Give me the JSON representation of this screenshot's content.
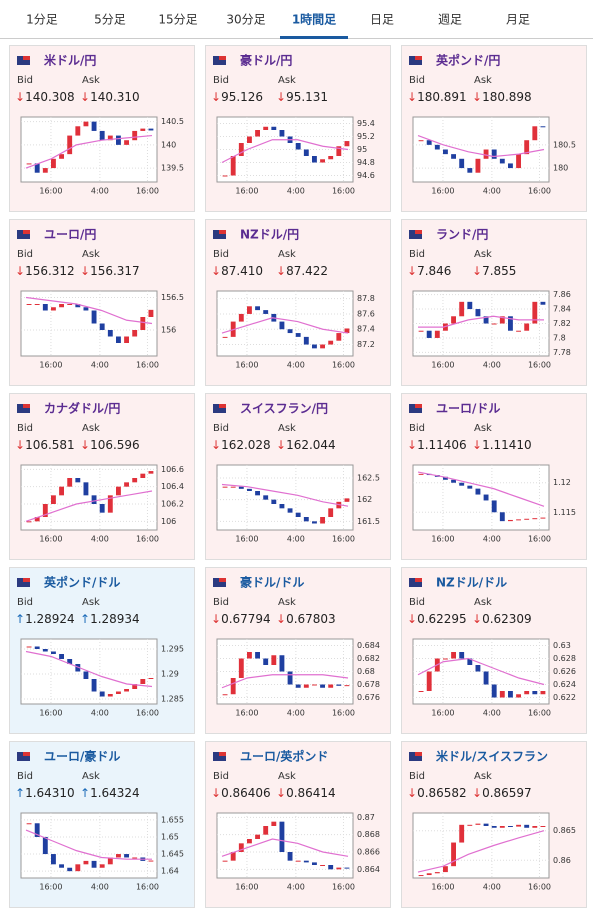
{
  "tabs": {
    "items": [
      "1分足",
      "5分足",
      "15分足",
      "30分足",
      "1時間足",
      "日足",
      "週足",
      "月足"
    ],
    "active": 4
  },
  "cards": [
    {
      "title": "米ドル/円",
      "bid_label": "Bid",
      "ask_label": "Ask",
      "bid": "140.308",
      "ask": "140.310",
      "dir": "down",
      "ylim": [
        139.2,
        140.6
      ],
      "yticks": [
        140.5,
        140,
        139.5
      ],
      "xticks": [
        "16:00",
        "4:00",
        "16:00"
      ],
      "closes": [
        139.6,
        139.4,
        139.5,
        139.7,
        139.8,
        140.2,
        140.4,
        140.5,
        140.3,
        140.1,
        140.2,
        140.0,
        140.1,
        140.3,
        140.35,
        140.31
      ],
      "ma": [
        139.5,
        139.7,
        140.0,
        140.1,
        140.15,
        140.2
      ]
    },
    {
      "title": "豪ドル/円",
      "bid_label": "Bid",
      "ask_label": "Ask",
      "bid": "95.126",
      "ask": "95.131",
      "dir": "down",
      "ylim": [
        94.5,
        95.5
      ],
      "yticks": [
        95.4,
        95.2,
        95,
        94.8,
        94.6
      ],
      "xticks": [
        "16:00",
        "4:00",
        "16:00"
      ],
      "closes": [
        94.6,
        94.9,
        95.1,
        95.2,
        95.3,
        95.35,
        95.3,
        95.2,
        95.1,
        95.0,
        94.9,
        94.8,
        94.85,
        94.9,
        95.05,
        95.13
      ],
      "ma": [
        94.8,
        95.0,
        95.15,
        95.15,
        95.05,
        95.0
      ]
    },
    {
      "title": "英ポンド/円",
      "bid_label": "Bid",
      "ask_label": "Ask",
      "bid": "180.891",
      "ask": "180.898",
      "dir": "down",
      "ylim": [
        179.7,
        181.1
      ],
      "yticks": [
        180.5,
        180
      ],
      "xticks": [
        "16:00",
        "4:00",
        "16:00"
      ],
      "closes": [
        180.6,
        180.5,
        180.4,
        180.3,
        180.2,
        180.0,
        179.9,
        180.2,
        180.4,
        180.2,
        180.1,
        180.0,
        180.3,
        180.6,
        180.9,
        180.89
      ],
      "ma": [
        180.7,
        180.5,
        180.35,
        180.25,
        180.3,
        180.4
      ]
    },
    {
      "title": "ユーロ/円",
      "bid_label": "Bid",
      "ask_label": "Ask",
      "bid": "156.312",
      "ask": "156.317",
      "dir": "down",
      "ylim": [
        155.6,
        156.6
      ],
      "yticks": [
        156.5,
        156
      ],
      "xticks": [
        "16:00",
        "4:00",
        "16:00"
      ],
      "closes": [
        156.4,
        156.4,
        156.3,
        156.35,
        156.4,
        156.4,
        156.35,
        156.3,
        156.1,
        156.0,
        155.9,
        155.8,
        155.9,
        156.0,
        156.2,
        156.31
      ],
      "ma": [
        156.5,
        156.45,
        156.4,
        156.3,
        156.15,
        156.1
      ]
    },
    {
      "title": "NZドル/円",
      "bid_label": "Bid",
      "ask_label": "Ask",
      "bid": "87.410",
      "ask": "87.422",
      "dir": "down",
      "ylim": [
        87.05,
        87.9
      ],
      "yticks": [
        87.8,
        87.6,
        87.4,
        87.2
      ],
      "xticks": [
        "16:00",
        "4:00",
        "16:00"
      ],
      "closes": [
        87.3,
        87.5,
        87.6,
        87.7,
        87.65,
        87.6,
        87.5,
        87.4,
        87.35,
        87.3,
        87.2,
        87.15,
        87.2,
        87.25,
        87.35,
        87.41
      ],
      "ma": [
        87.35,
        87.45,
        87.55,
        87.5,
        87.4,
        87.35
      ]
    },
    {
      "title": "ランド/円",
      "bid_label": "Bid",
      "ask_label": "Ask",
      "bid": "7.846",
      "ask": "7.855",
      "dir": "down",
      "ylim": [
        7.775,
        7.865
      ],
      "yticks": [
        7.86,
        7.84,
        7.82,
        7.8,
        7.78
      ],
      "xticks": [
        "16:00",
        "4:00",
        "16:00"
      ],
      "closes": [
        7.81,
        7.8,
        7.81,
        7.82,
        7.83,
        7.85,
        7.84,
        7.83,
        7.82,
        7.82,
        7.83,
        7.81,
        7.81,
        7.82,
        7.85,
        7.846
      ],
      "ma": [
        7.815,
        7.815,
        7.825,
        7.83,
        7.825,
        7.825
      ]
    },
    {
      "title": "カナダドル/円",
      "bid_label": "Bid",
      "ask_label": "Ask",
      "bid": "106.581",
      "ask": "106.596",
      "dir": "down",
      "ylim": [
        105.9,
        106.65
      ],
      "yticks": [
        106.6,
        106.4,
        106.2,
        106
      ],
      "xticks": [
        "16:00",
        "4:00",
        "16:00"
      ],
      "closes": [
        106.0,
        106.05,
        106.2,
        106.3,
        106.4,
        106.5,
        106.45,
        106.3,
        106.2,
        106.1,
        106.3,
        106.4,
        106.45,
        106.5,
        106.55,
        106.58
      ],
      "ma": [
        106.0,
        106.1,
        106.2,
        106.25,
        106.3,
        106.35
      ]
    },
    {
      "title": "スイスフラン/円",
      "bid_label": "Bid",
      "ask_label": "Ask",
      "bid": "162.028",
      "ask": "162.044",
      "dir": "down",
      "ylim": [
        161.3,
        162.8
      ],
      "yticks": [
        162.5,
        162,
        161.5
      ],
      "xticks": [
        "16:00",
        "4:00",
        "16:00"
      ],
      "closes": [
        162.3,
        162.3,
        162.25,
        162.2,
        162.1,
        162.0,
        161.9,
        161.8,
        161.7,
        161.6,
        161.5,
        161.45,
        161.6,
        161.8,
        161.95,
        162.03
      ],
      "ma": [
        162.35,
        162.3,
        162.2,
        162.1,
        161.95,
        161.85
      ]
    },
    {
      "title": "ユーロ/ドル",
      "bid_label": "Bid",
      "ask_label": "Ask",
      "bid": "1.11406",
      "ask": "1.11410",
      "dir": "down",
      "ylim": [
        1.112,
        1.123
      ],
      "yticks": [
        1.12,
        1.115
      ],
      "xticks": [
        "16:00",
        "4:00",
        "16:00"
      ],
      "closes": [
        1.1215,
        1.1213,
        1.121,
        1.1205,
        1.12,
        1.1195,
        1.119,
        1.118,
        1.117,
        1.115,
        1.1135,
        1.1137,
        1.1138,
        1.1139,
        1.114,
        1.1141
      ],
      "ma": [
        1.1218,
        1.121,
        1.12,
        1.119,
        1.1175,
        1.116
      ]
    },
    {
      "title": "英ポンド/ドル",
      "bid_label": "Bid",
      "ask_label": "Ask",
      "bid": "1.28924",
      "ask": "1.28934",
      "dir": "up",
      "ylim": [
        1.284,
        1.297
      ],
      "yticks": [
        1.295,
        1.29,
        1.285
      ],
      "xticks": [
        "16:00",
        "4:00",
        "16:00"
      ],
      "closes": [
        1.2955,
        1.295,
        1.2945,
        1.294,
        1.293,
        1.292,
        1.2905,
        1.289,
        1.2865,
        1.2855,
        1.286,
        1.2865,
        1.287,
        1.288,
        1.289,
        1.2892
      ],
      "ma": [
        1.2945,
        1.2935,
        1.2915,
        1.2895,
        1.288,
        1.2875
      ]
    },
    {
      "title": "豪ドル/ドル",
      "bid_label": "Bid",
      "ask_label": "Ask",
      "bid": "0.67794",
      "ask": "0.67803",
      "dir": "down",
      "ylim": [
        0.675,
        0.685
      ],
      "yticks": [
        0.684,
        0.682,
        0.68,
        0.678,
        0.676
      ],
      "xticks": [
        "16:00",
        "4:00",
        "16:00"
      ],
      "closes": [
        0.6765,
        0.679,
        0.682,
        0.683,
        0.682,
        0.681,
        0.6825,
        0.68,
        0.678,
        0.6775,
        0.678,
        0.678,
        0.6775,
        0.678,
        0.6778,
        0.6779
      ],
      "ma": [
        0.6775,
        0.679,
        0.6795,
        0.6795,
        0.6795,
        0.679
      ]
    },
    {
      "title": "NZドル/ドル",
      "bid_label": "Bid",
      "ask_label": "Ask",
      "bid": "0.62295",
      "ask": "0.62309",
      "dir": "down",
      "ylim": [
        0.621,
        0.631
      ],
      "yticks": [
        0.63,
        0.628,
        0.626,
        0.624,
        0.622
      ],
      "xticks": [
        "16:00",
        "4:00",
        "16:00"
      ],
      "closes": [
        0.623,
        0.626,
        0.628,
        0.628,
        0.629,
        0.628,
        0.627,
        0.626,
        0.624,
        0.622,
        0.623,
        0.622,
        0.6225,
        0.623,
        0.6225,
        0.623
      ],
      "ma": [
        0.6255,
        0.6275,
        0.628,
        0.6265,
        0.625,
        0.624
      ]
    },
    {
      "title": "ユーロ/豪ドル",
      "bid_label": "Bid",
      "ask_label": "Ask",
      "bid": "1.64310",
      "ask": "1.64324",
      "dir": "up",
      "ylim": [
        1.638,
        1.657
      ],
      "yticks": [
        1.655,
        1.65,
        1.645,
        1.64
      ],
      "xticks": [
        "16:00",
        "4:00",
        "16:00"
      ],
      "closes": [
        1.654,
        1.65,
        1.645,
        1.642,
        1.641,
        1.64,
        1.642,
        1.643,
        1.641,
        1.642,
        1.644,
        1.645,
        1.644,
        1.644,
        1.643,
        1.6431
      ],
      "ma": [
        1.652,
        1.649,
        1.646,
        1.644,
        1.6435,
        1.6435
      ]
    },
    {
      "title": "ユーロ/英ポンド",
      "bid_label": "Bid",
      "ask_label": "Ask",
      "bid": "0.86406",
      "ask": "0.86414",
      "dir": "down",
      "ylim": [
        0.863,
        0.8705
      ],
      "yticks": [
        0.87,
        0.868,
        0.866,
        0.864
      ],
      "xticks": [
        "16:00",
        "4:00",
        "16:00"
      ],
      "closes": [
        0.865,
        0.866,
        0.867,
        0.8675,
        0.868,
        0.869,
        0.8695,
        0.866,
        0.865,
        0.865,
        0.8648,
        0.8645,
        0.8645,
        0.864,
        0.8642,
        0.8641
      ],
      "ma": [
        0.8655,
        0.8665,
        0.8675,
        0.867,
        0.866,
        0.8655
      ]
    },
    {
      "title": "米ドル/スイスフラン",
      "bid_label": "Bid",
      "ask_label": "Ask",
      "bid": "0.86582",
      "ask": "0.86597",
      "dir": "down",
      "ylim": [
        0.857,
        0.868
      ],
      "yticks": [
        0.865,
        0.86
      ],
      "xticks": [
        "16:00",
        "4:00",
        "16:00"
      ],
      "closes": [
        0.8575,
        0.8578,
        0.858,
        0.859,
        0.863,
        0.866,
        0.866,
        0.8662,
        0.8658,
        0.8655,
        0.8658,
        0.8657,
        0.866,
        0.8655,
        0.8658,
        0.8658
      ],
      "ma": [
        0.858,
        0.859,
        0.861,
        0.8625,
        0.8638,
        0.865
      ]
    }
  ]
}
